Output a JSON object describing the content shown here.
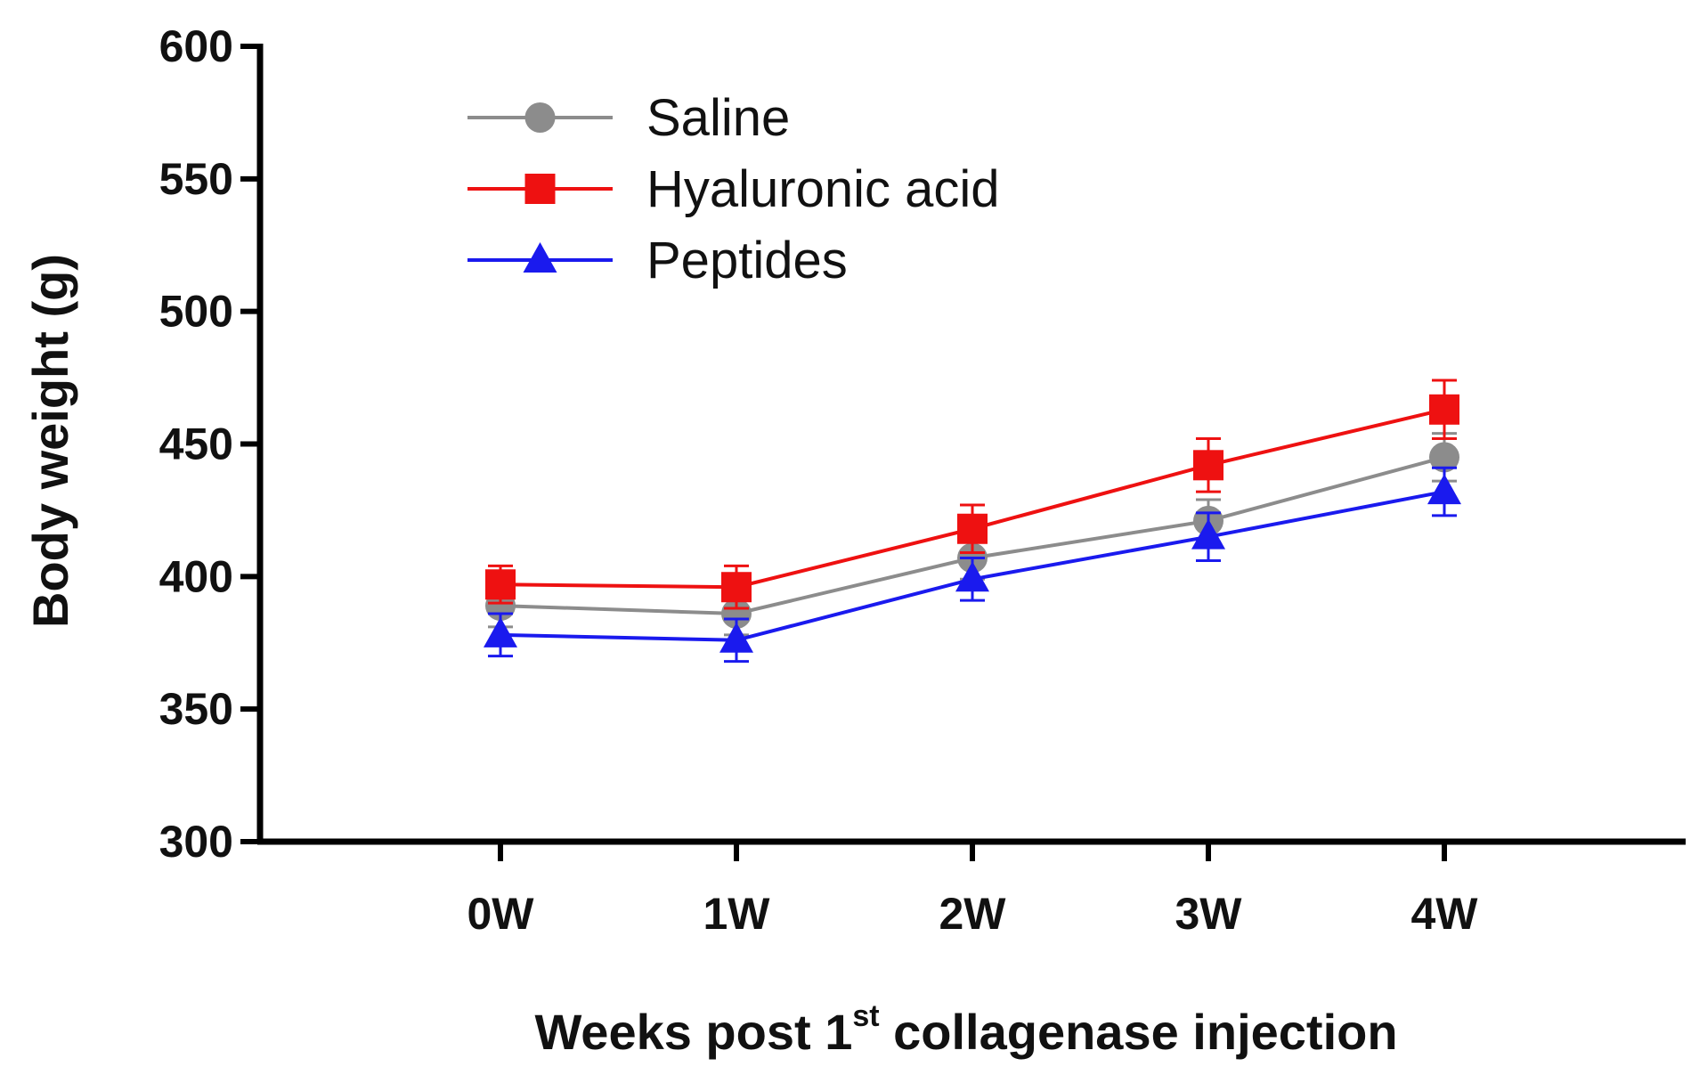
{
  "chart_data": {
    "type": "line",
    "title": "",
    "xlabel": {
      "prefix": "Weeks post 1",
      "superscript": "st",
      "suffix": " collagenase injection"
    },
    "ylabel": "Body weight (g)",
    "categories": [
      "0W",
      "1W",
      "2W",
      "3W",
      "4W"
    ],
    "ylim": [
      300,
      600
    ],
    "yticks": [
      300,
      350,
      400,
      450,
      500,
      550,
      600
    ],
    "legend_position": "top-left",
    "grid": false,
    "series": [
      {
        "name": "Saline",
        "color": "#8c8c8c",
        "marker": "circle",
        "values": [
          389,
          386,
          407,
          421,
          445
        ],
        "errors": [
          8,
          8,
          8,
          8,
          9
        ]
      },
      {
        "name": "Hyaluronic acid",
        "color": "#ee1111",
        "marker": "square",
        "values": [
          397,
          396,
          418,
          442,
          463
        ],
        "errors": [
          7,
          8,
          9,
          10,
          11
        ]
      },
      {
        "name": "Peptides",
        "color": "#1a1aee",
        "marker": "triangle",
        "values": [
          378,
          376,
          399,
          415,
          432
        ],
        "errors": [
          8,
          8,
          8,
          9,
          9
        ]
      }
    ]
  }
}
